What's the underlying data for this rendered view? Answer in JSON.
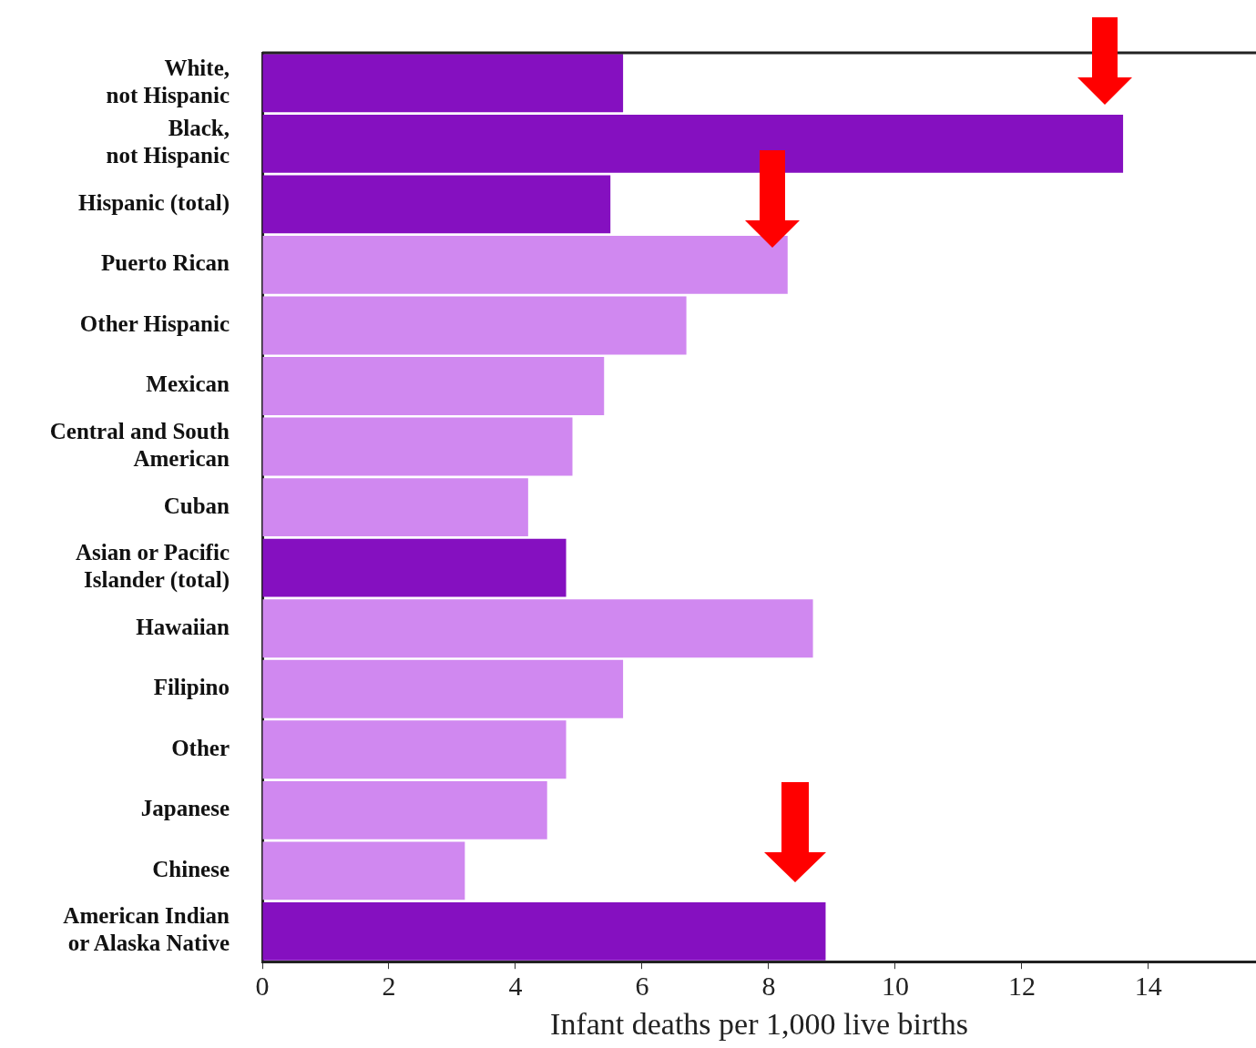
{
  "chart_data": {
    "type": "bar",
    "orientation": "horizontal",
    "xlabel": "Infant deaths per 1,000 live births",
    "categories": [
      "White,\nnot Hispanic",
      "Black,\nnot Hispanic",
      "Hispanic (total)",
      "Puerto Rican",
      "Other Hispanic",
      "Mexican",
      "Central and South\nAmerican",
      "Cuban",
      "Asian or Pacific\nIslander (total)",
      "Hawaiian",
      "Filipino",
      "Other",
      "Japanese",
      "Chinese",
      "American Indian\nor Alaska Native"
    ],
    "values": [
      5.7,
      13.6,
      5.5,
      8.3,
      6.7,
      5.4,
      4.9,
      4.2,
      4.8,
      8.7,
      5.7,
      4.8,
      4.5,
      3.2,
      8.9
    ],
    "colors": [
      "#8510c0",
      "#8510c0",
      "#8510c0",
      "#d088f0",
      "#d088f0",
      "#d088f0",
      "#d088f0",
      "#d088f0",
      "#8510c0",
      "#d088f0",
      "#d088f0",
      "#d088f0",
      "#d088f0",
      "#d088f0",
      "#8510c0"
    ],
    "xlim": [
      0,
      15.7
    ],
    "xticks": [
      0,
      2,
      4,
      6,
      8,
      10,
      12,
      14
    ],
    "grid": false,
    "legend": false
  }
}
